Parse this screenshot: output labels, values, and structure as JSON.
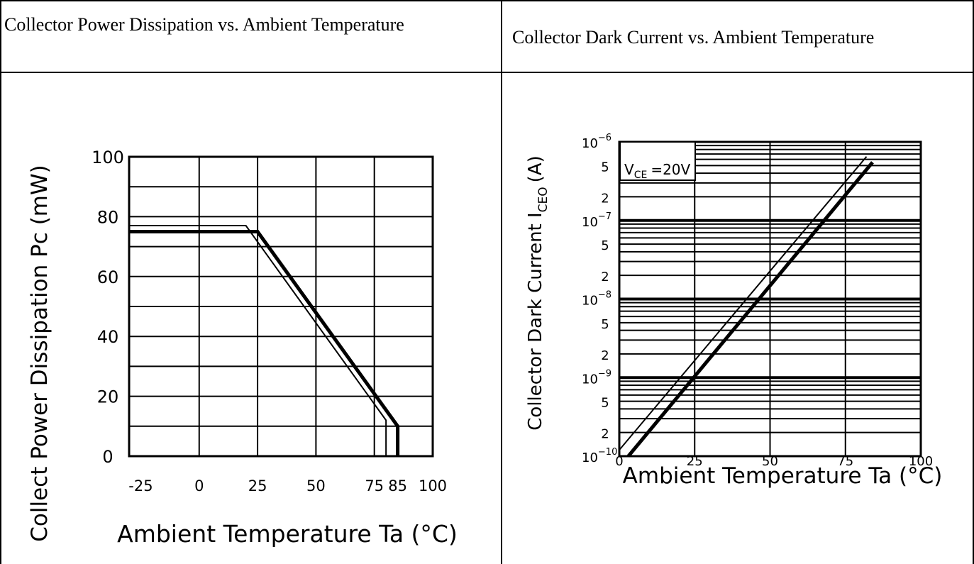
{
  "headers": {
    "left": "Collector Power Dissipation vs. Ambient Temperature",
    "right": "Collector Dark Current vs. Ambient Temperature"
  },
  "chart_data": [
    {
      "type": "line",
      "title": "Collector Power Dissipation vs. Ambient Temperature",
      "xlabel": "Ambient Temperature Ta (°C)",
      "ylabel": "Collect Power Dissipation Pc (mW)",
      "x_ticks": [
        "-25",
        "0",
        "25",
        "50",
        "75",
        "85",
        "100"
      ],
      "y_ticks": [
        "0",
        "20",
        "40",
        "60",
        "80",
        "100"
      ],
      "xlim": [
        -30,
        100
      ],
      "ylim": [
        0,
        100
      ],
      "grid": true,
      "series": [
        {
          "style": "thin",
          "points": [
            [
              -30,
              77
            ],
            [
              20,
              77
            ],
            [
              80,
              12
            ],
            [
              80,
              0
            ]
          ]
        },
        {
          "style": "thick",
          "points": [
            [
              -30,
              75
            ],
            [
              25,
              75
            ],
            [
              85,
              10
            ],
            [
              85,
              0
            ]
          ]
        }
      ]
    },
    {
      "type": "line",
      "title": "Collector Dark Current vs. Ambient Temperature",
      "xlabel": "Ambient Temperature Ta (°C)",
      "ylabel": "Collector Dark Current ICEO (A)",
      "ylabel_main": "Collector Dark Current I",
      "ylabel_sub": "CEO",
      "ylabel_unit": "(A)",
      "y_scale": "log",
      "x_ticks": [
        "0",
        "25",
        "50",
        "75",
        "100"
      ],
      "y_decades": [
        {
          "base": "10",
          "exp": "−6"
        },
        {
          "base": "10",
          "exp": "−7"
        },
        {
          "base": "10",
          "exp": "−8"
        },
        {
          "base": "10",
          "exp": "−9"
        },
        {
          "base": "10",
          "exp": "−10"
        }
      ],
      "y_minor_labels": [
        "5",
        "2"
      ],
      "xlim": [
        0,
        100
      ],
      "ylim": [
        "1e-10",
        "1e-6"
      ],
      "grid": true,
      "annotation": {
        "main": "V",
        "sub": "CE",
        "rest": "=20V"
      },
      "series": [
        {
          "style": "thin",
          "points": [
            [
              0,
              1.2e-10
            ],
            [
              82,
              6.5e-07
            ]
          ]
        },
        {
          "style": "thick",
          "points": [
            [
              3,
              1e-10
            ],
            [
              84,
              5.5e-07
            ]
          ]
        }
      ]
    }
  ]
}
